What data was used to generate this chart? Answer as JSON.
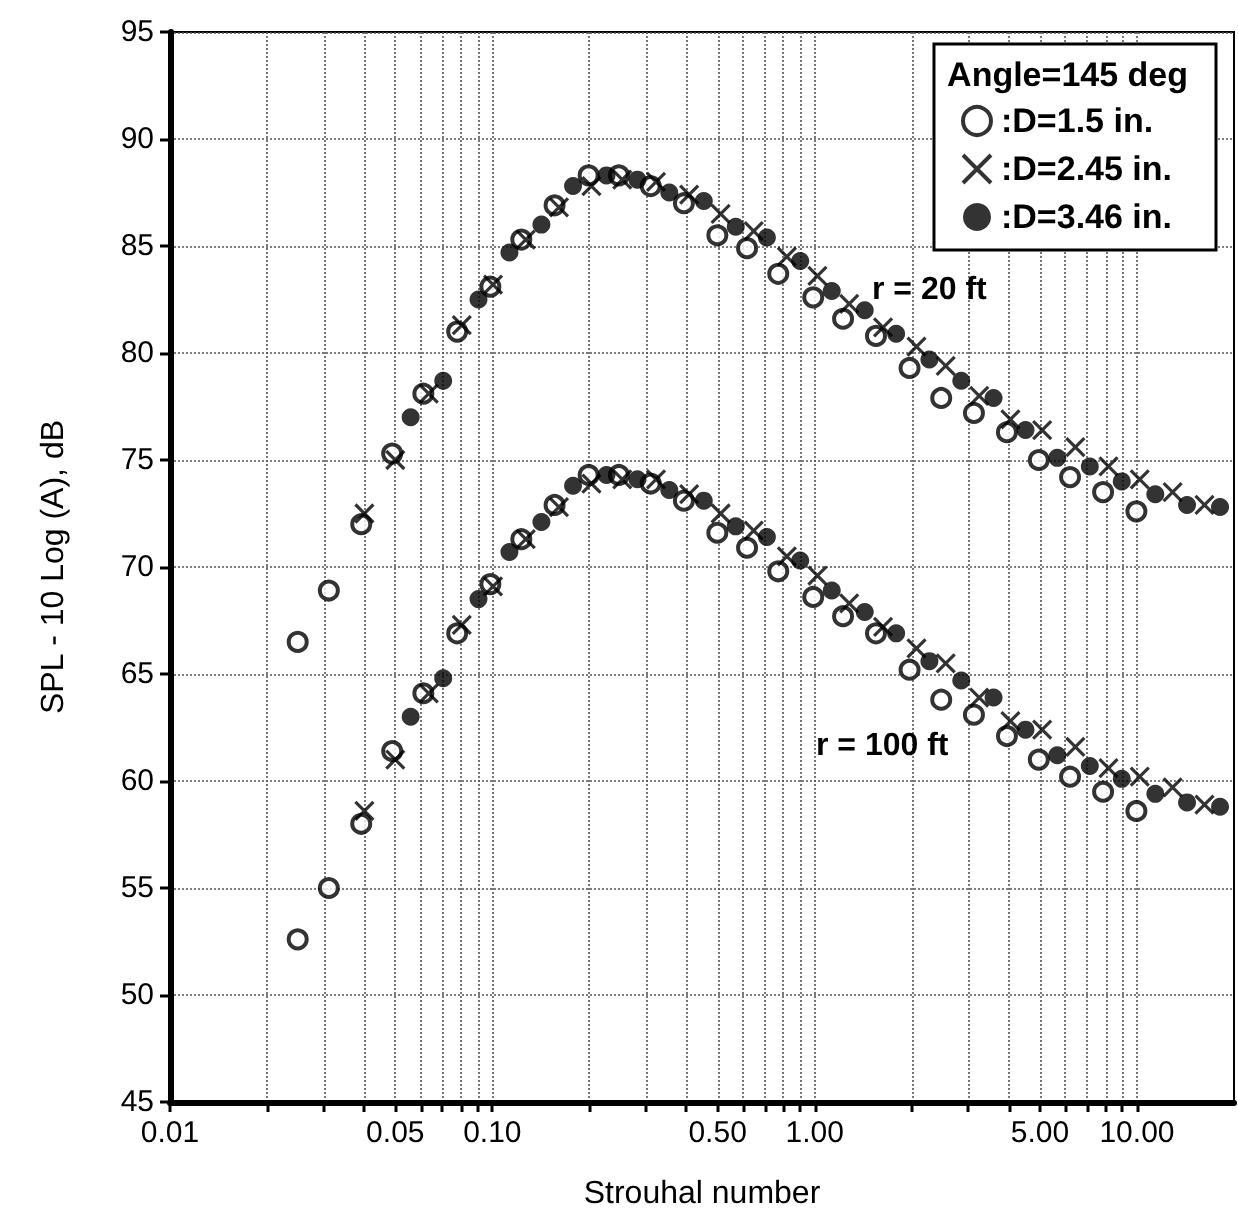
{
  "chart_data": {
    "type": "scatter",
    "xlabel": "Strouhal number",
    "ylabel": "SPL - 10 Log (A), dB",
    "legend_title": "Angle=145 deg",
    "log": "x",
    "xlim": [
      0.01,
      20
    ],
    "ylim": [
      45,
      95
    ],
    "xticks": [
      {
        "value": 0.01,
        "label": "0.01"
      },
      {
        "value": 0.02,
        "label": null
      },
      {
        "value": 0.03,
        "label": null
      },
      {
        "value": 0.04,
        "label": null
      },
      {
        "value": 0.05,
        "label": "0.05"
      },
      {
        "value": 0.06,
        "label": null
      },
      {
        "value": 0.07,
        "label": null
      },
      {
        "value": 0.08,
        "label": null
      },
      {
        "value": 0.09,
        "label": null
      },
      {
        "value": 0.1,
        "label": "0.10"
      },
      {
        "value": 0.2,
        "label": null
      },
      {
        "value": 0.3,
        "label": null
      },
      {
        "value": 0.4,
        "label": null
      },
      {
        "value": 0.5,
        "label": "0.50"
      },
      {
        "value": 0.6,
        "label": null
      },
      {
        "value": 0.7,
        "label": null
      },
      {
        "value": 0.8,
        "label": null
      },
      {
        "value": 0.9,
        "label": null
      },
      {
        "value": 1,
        "label": "1.00"
      },
      {
        "value": 2,
        "label": null
      },
      {
        "value": 3,
        "label": null
      },
      {
        "value": 4,
        "label": null
      },
      {
        "value": 5,
        "label": "5.00"
      },
      {
        "value": 6,
        "label": null
      },
      {
        "value": 7,
        "label": null
      },
      {
        "value": 8,
        "label": null
      },
      {
        "value": 9,
        "label": null
      },
      {
        "value": 10,
        "label": "10.00"
      }
    ],
    "yticks": [
      45,
      50,
      55,
      60,
      65,
      70,
      75,
      80,
      85,
      90,
      95
    ],
    "grid": true,
    "legend": "top right",
    "annotations": [
      "r = 20 ft",
      "r = 100 ft"
    ],
    "series": [
      {
        "name": ":D=1.5 in.",
        "color": "#000000",
        "marker": "circle-open",
        "x": [
          0.0249,
          0.0311,
          0.0392,
          0.0489,
          0.0611,
          0.0778,
          0.0986,
          0.123,
          0.156,
          0.199,
          0.247,
          0.31,
          0.393,
          0.499,
          0.617,
          0.771,
          0.99,
          1.225,
          1.55,
          1.97,
          2.47,
          3.12,
          3.95,
          4.96,
          6.2,
          7.85,
          9.96,
          0.0249,
          0.0311,
          0.0392,
          0.0489,
          0.0611,
          0.0778,
          0.0986,
          0.123,
          0.156,
          0.199,
          0.247,
          0.31,
          0.393,
          0.499,
          0.617,
          0.771,
          0.99,
          1.225,
          1.55,
          1.97,
          2.47,
          3.12,
          3.95,
          4.96,
          6.2,
          7.85,
          9.96
        ],
        "values": [
          66.5,
          68.9,
          72.0,
          75.3,
          78.1,
          81.0,
          83.1,
          85.3,
          86.9,
          88.3,
          88.3,
          87.8,
          87.0,
          85.5,
          84.9,
          83.7,
          82.6,
          81.6,
          80.8,
          79.3,
          77.9,
          77.2,
          76.3,
          75.0,
          74.2,
          73.5,
          72.6,
          52.6,
          55.0,
          58.0,
          61.4,
          64.1,
          66.9,
          69.2,
          71.3,
          72.9,
          74.3,
          74.3,
          73.9,
          73.1,
          71.6,
          70.9,
          69.8,
          68.6,
          67.7,
          66.9,
          65.2,
          63.8,
          63.1,
          62.1,
          61.0,
          60.2,
          59.5,
          58.6
        ]
      },
      {
        "name": ":D=2.45 in.",
        "color": "#000000",
        "marker": "cross",
        "x": [
          0.0401,
          0.05,
          0.0635,
          0.0804,
          0.1005,
          0.127,
          0.161,
          0.203,
          0.253,
          0.322,
          0.408,
          0.511,
          0.647,
          0.82,
          1.02,
          1.28,
          1.63,
          2.07,
          2.55,
          3.24,
          4.05,
          5.08,
          6.44,
          8.16,
          10.2,
          12.9,
          16.2,
          0.0401,
          0.05,
          0.0635,
          0.0804,
          0.1005,
          0.127,
          0.161,
          0.203,
          0.253,
          0.322,
          0.408,
          0.511,
          0.647,
          0.82,
          1.02,
          1.28,
          1.63,
          2.07,
          2.55,
          3.24,
          4.05,
          5.08,
          6.44,
          8.16,
          10.2,
          12.9,
          16.2
        ],
        "values": [
          72.5,
          75.0,
          78.1,
          81.3,
          83.2,
          85.3,
          86.8,
          87.8,
          88.1,
          88.0,
          87.4,
          86.5,
          85.7,
          84.5,
          83.6,
          82.3,
          81.2,
          80.3,
          79.4,
          78.0,
          76.9,
          76.4,
          75.6,
          74.7,
          74.1,
          73.5,
          72.9,
          58.6,
          61.0,
          64.1,
          67.3,
          69.1,
          71.3,
          72.8,
          73.9,
          74.1,
          74.1,
          73.4,
          72.5,
          71.7,
          70.5,
          69.6,
          68.3,
          67.2,
          66.2,
          65.5,
          63.9,
          62.8,
          62.4,
          61.6,
          60.6,
          60.2,
          59.7,
          58.9
        ]
      },
      {
        "name": ":D=3.46 in.",
        "color": "#000000",
        "marker": "circle",
        "x": [
          0.0558,
          0.0704,
          0.0906,
          0.113,
          0.142,
          0.178,
          0.226,
          0.282,
          0.354,
          0.453,
          0.569,
          0.711,
          0.902,
          1.13,
          1.43,
          1.79,
          2.27,
          2.85,
          3.59,
          4.51,
          5.66,
          7.14,
          8.97,
          11.4,
          14.3,
          18.1,
          0.0558,
          0.0704,
          0.0906,
          0.113,
          0.142,
          0.178,
          0.226,
          0.282,
          0.354,
          0.453,
          0.569,
          0.711,
          0.902,
          1.13,
          1.43,
          1.79,
          2.27,
          2.85,
          3.59,
          4.51,
          5.66,
          7.14,
          8.97,
          11.4,
          14.3,
          18.1
        ],
        "values": [
          77.0,
          78.7,
          82.5,
          84.7,
          86.0,
          87.8,
          88.3,
          88.1,
          87.5,
          87.1,
          85.9,
          85.4,
          84.3,
          82.9,
          82.0,
          80.9,
          79.7,
          78.7,
          77.9,
          76.4,
          75.1,
          74.7,
          74.0,
          73.4,
          72.9,
          72.8,
          63.0,
          64.8,
          68.5,
          70.7,
          72.1,
          73.8,
          74.3,
          74.1,
          73.6,
          73.1,
          71.9,
          71.4,
          70.3,
          68.9,
          67.9,
          66.9,
          65.6,
          64.7,
          63.9,
          62.4,
          61.2,
          60.7,
          60.1,
          59.4,
          59.0,
          58.8
        ]
      }
    ]
  }
}
